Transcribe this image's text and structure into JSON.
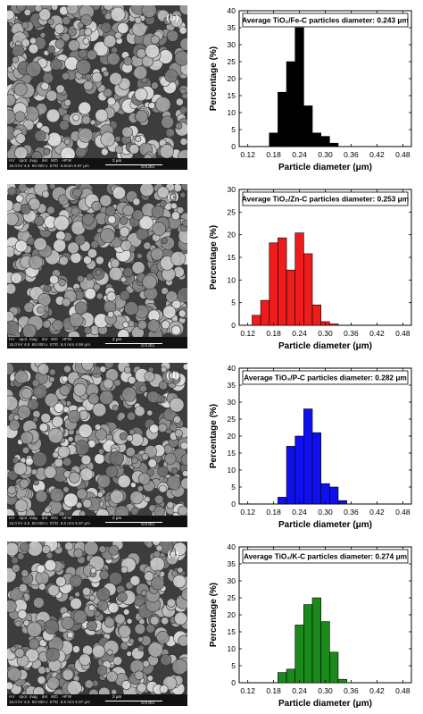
{
  "sem_footer": {
    "headers": "HV    spot  mag    det   WD    HFW",
    "scale": "2 μm",
    "instrument": "SAIJEx"
  },
  "colors": {
    "b": "#000000",
    "c": "#ee1c1c",
    "d": "#1010ee",
    "e": "#1a8a1a"
  },
  "panels": [
    {
      "id": "b",
      "label": "(b)",
      "sem_values": "15.0 kV 4.5  50 000 x  ETD  6.5mm 5.97 μm",
      "chart_data": {
        "type": "bar",
        "title": "Average TiO₂/Fe-C particles diameter: 0.243 μm",
        "xlabel": "Particle diameter (μm)",
        "ylabel": "Percentage (%)",
        "x": [
          0.18,
          0.2,
          0.22,
          0.24,
          0.26,
          0.28,
          0.3,
          0.32,
          0.34
        ],
        "values": [
          4,
          16,
          25,
          35,
          12,
          4,
          3,
          1,
          0
        ],
        "xticks": [
          "0.12",
          "0.18",
          "0.24",
          "0.30",
          "0.36",
          "0.42",
          "0.48"
        ],
        "xlim": [
          0.1,
          0.5
        ],
        "ylim": [
          0,
          40
        ],
        "yticks": [
          "0",
          "5",
          "10",
          "15",
          "20",
          "25",
          "30",
          "35",
          "40"
        ]
      }
    },
    {
      "id": "c",
      "label": "(c)",
      "sem_values": "15.0 kV 4.5  65 000 x  ETD  6.4 mm 4.59 μm",
      "chart_data": {
        "type": "bar",
        "title": "Average TiO₂/Zn-C particles diameter: 0.253 μm",
        "xlabel": "Particle diameter (μm)",
        "ylabel": "Percentage (%)",
        "x": [
          0.14,
          0.16,
          0.18,
          0.2,
          0.22,
          0.24,
          0.26,
          0.28,
          0.3,
          0.32
        ],
        "values": [
          2.2,
          5.5,
          18.2,
          19.3,
          12.2,
          20.4,
          15.8,
          4.5,
          0.8,
          0.3
        ],
        "xticks": [
          "0.12",
          "0.18",
          "0.24",
          "0.30",
          "0.36",
          "0.42",
          "0.48"
        ],
        "xlim": [
          0.1,
          0.5
        ],
        "ylim": [
          0,
          30
        ],
        "yticks": [
          "0",
          "5",
          "10",
          "15",
          "20",
          "25",
          "30"
        ]
      }
    },
    {
      "id": "d",
      "label": "(d)",
      "sem_values": "15.0 kV 4.5  50 000 x  ETD  6.5 mm 5.97 μm",
      "chart_data": {
        "type": "bar",
        "title": "Average TiO₂/P-C particles diameter: 0.282 μm",
        "xlabel": "Particle diameter (μm)",
        "ylabel": "Percentage (%)",
        "x": [
          0.2,
          0.22,
          0.24,
          0.26,
          0.28,
          0.3,
          0.32,
          0.34,
          0.36
        ],
        "values": [
          2,
          17,
          20,
          28,
          21,
          6,
          5,
          1,
          0
        ],
        "xticks": [
          "0.12",
          "0.18",
          "0.24",
          "0.30",
          "0.36",
          "0.42",
          "0.48"
        ],
        "xlim": [
          0.1,
          0.5
        ],
        "ylim": [
          0,
          40
        ],
        "yticks": [
          "0",
          "5",
          "10",
          "15",
          "20",
          "25",
          "30",
          "35",
          "40"
        ]
      }
    },
    {
      "id": "e",
      "label": "(e)",
      "sem_values": "15.0 kV 4.5  50 000 x  ETD  6.5 mm 5.97 μm",
      "chart_data": {
        "type": "bar",
        "title": "Average TiO₂/K-C particles diameter: 0.274 μm",
        "xlabel": "Particle diameter (μm)",
        "ylabel": "Percentage (%)",
        "x": [
          0.2,
          0.22,
          0.24,
          0.26,
          0.28,
          0.3,
          0.32,
          0.34,
          0.36
        ],
        "values": [
          3,
          4,
          17,
          23,
          25,
          18,
          9,
          1,
          0
        ],
        "xticks": [
          "0.12",
          "0.18",
          "0.24",
          "0.30",
          "0.36",
          "0.42",
          "0.48"
        ],
        "xlim": [
          0.1,
          0.5
        ],
        "ylim": [
          0,
          40
        ],
        "yticks": [
          "0",
          "5",
          "10",
          "15",
          "20",
          "25",
          "30",
          "35",
          "40"
        ]
      }
    }
  ]
}
